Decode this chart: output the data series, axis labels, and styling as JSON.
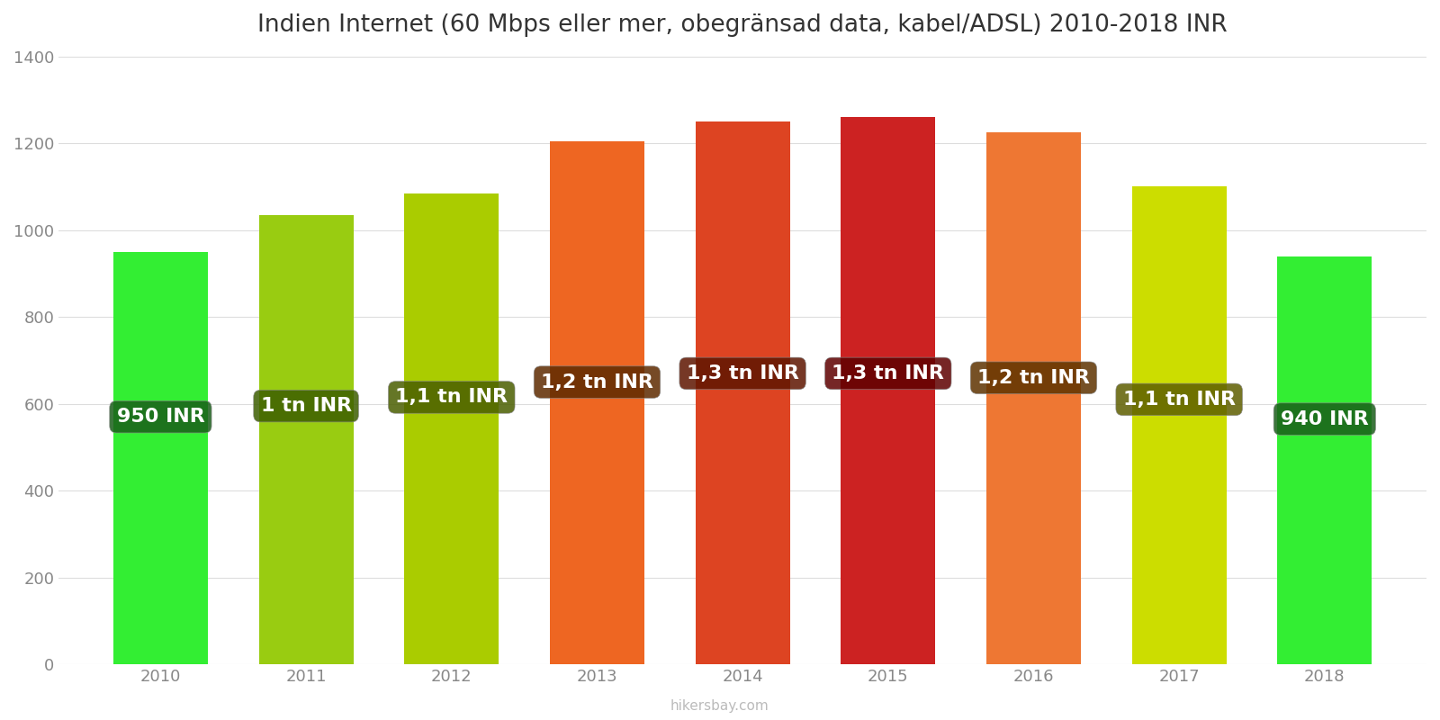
{
  "title": "Indien Internet (60 Mbps eller mer, obegränsad data, kabel/ADSL) 2010-2018 INR",
  "years": [
    2010,
    2011,
    2012,
    2013,
    2014,
    2015,
    2016,
    2017,
    2018
  ],
  "values": [
    950,
    1035,
    1085,
    1205,
    1250,
    1260,
    1225,
    1100,
    940
  ],
  "labels": [
    "950 INR",
    "1 tn INR",
    "1,1 tn INR",
    "1,2 tn INR",
    "1,3 tn INR",
    "1,3 tn INR",
    "1,2 tn INR",
    "1,1 tn INR",
    "940 INR"
  ],
  "bar_colors": [
    "#33ee33",
    "#99cc11",
    "#aacc00",
    "#ee6622",
    "#dd4422",
    "#cc2222",
    "#ee7733",
    "#ccdd00",
    "#33ee33"
  ],
  "label_box_colors": [
    "#1a5e1a",
    "#3d5e00",
    "#4a5e00",
    "#5e2a00",
    "#5e1500",
    "#5e0000",
    "#5e3300",
    "#5e5e00",
    "#1a5e1a"
  ],
  "ylim": [
    0,
    1400
  ],
  "yticks": [
    0,
    200,
    400,
    600,
    800,
    1000,
    1200,
    1400
  ],
  "label_y_positions": [
    570,
    595,
    615,
    650,
    670,
    670,
    660,
    610,
    565
  ],
  "watermark": "hikersbay.com",
  "background_color": "#ffffff",
  "title_fontsize": 19,
  "label_fontsize": 16,
  "bar_width": 0.65
}
